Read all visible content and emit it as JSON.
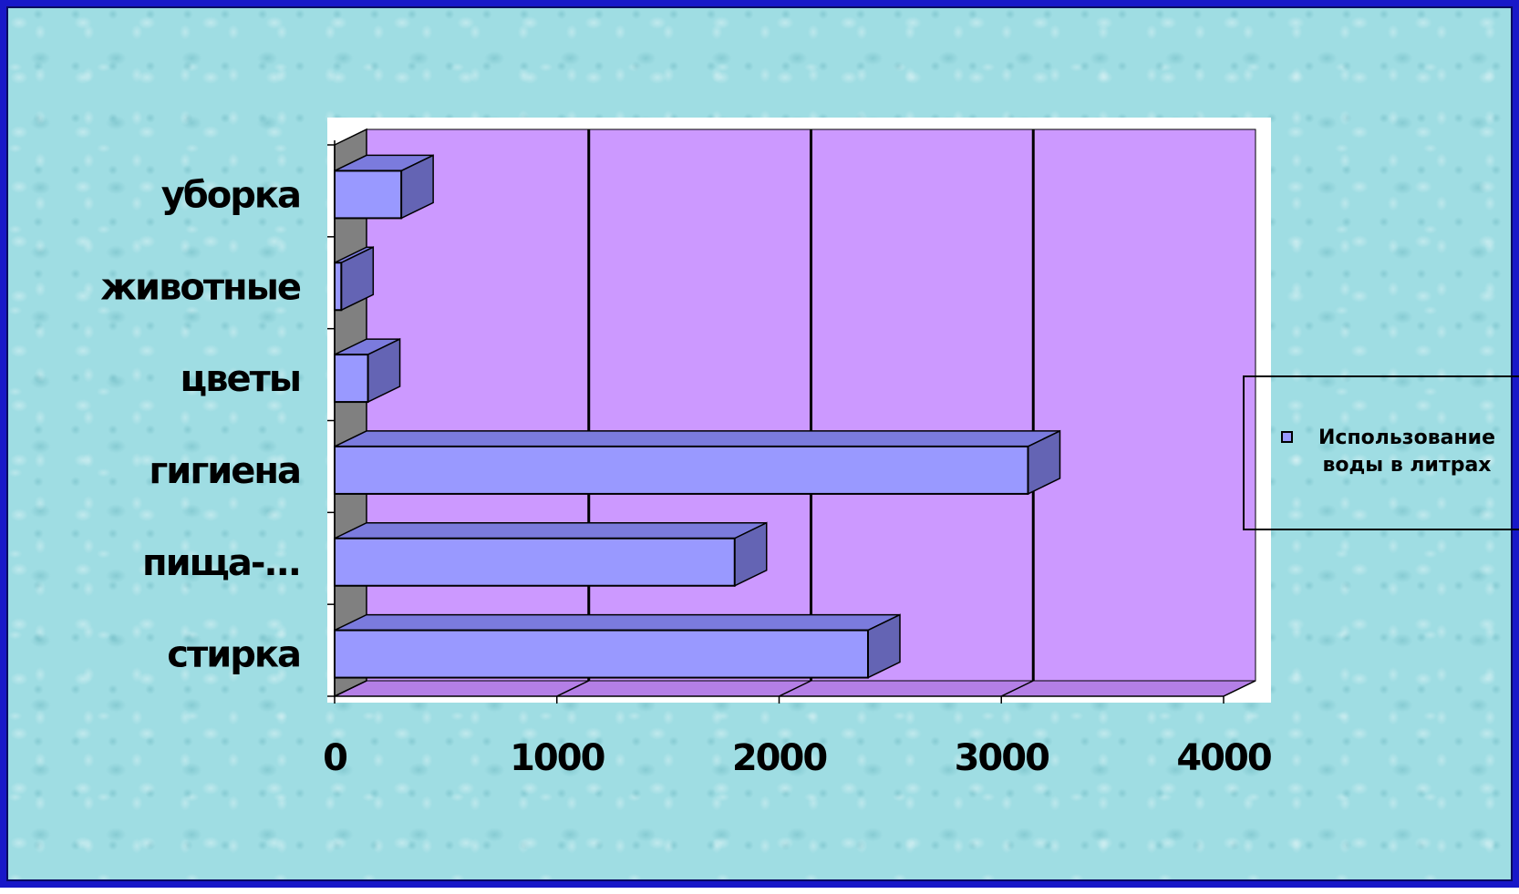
{
  "chart_data": {
    "type": "bar",
    "orientation": "horizontal",
    "style": "3d",
    "categories": [
      "стирка",
      "пища-...",
      "гигиена",
      "цветы",
      "животные",
      "уборка"
    ],
    "series": [
      {
        "name": "Использование воды в литрах",
        "values": [
          2400,
          1800,
          3120,
          150,
          30,
          300
        ]
      }
    ],
    "xlim": [
      0,
      4000
    ],
    "x_ticks": [
      "0",
      "1000",
      "2000",
      "3000",
      "4000"
    ],
    "grid": "vertical",
    "legend_position": "right",
    "colors": {
      "bar_front": "#9999ff",
      "bar_top": "#7b7bdd",
      "bar_side": "#6464b4",
      "plot_wall": "#cc99ff",
      "plot_floor": "#b47fe6",
      "side_wall": "#808080",
      "chart_area": "#ffffff",
      "slide_background": "#9fdde3",
      "slide_border": "#1818c8"
    }
  },
  "legend": {
    "label": "Использование воды в литрах",
    "line1": "Использование",
    "line2": "воды в литрах"
  }
}
